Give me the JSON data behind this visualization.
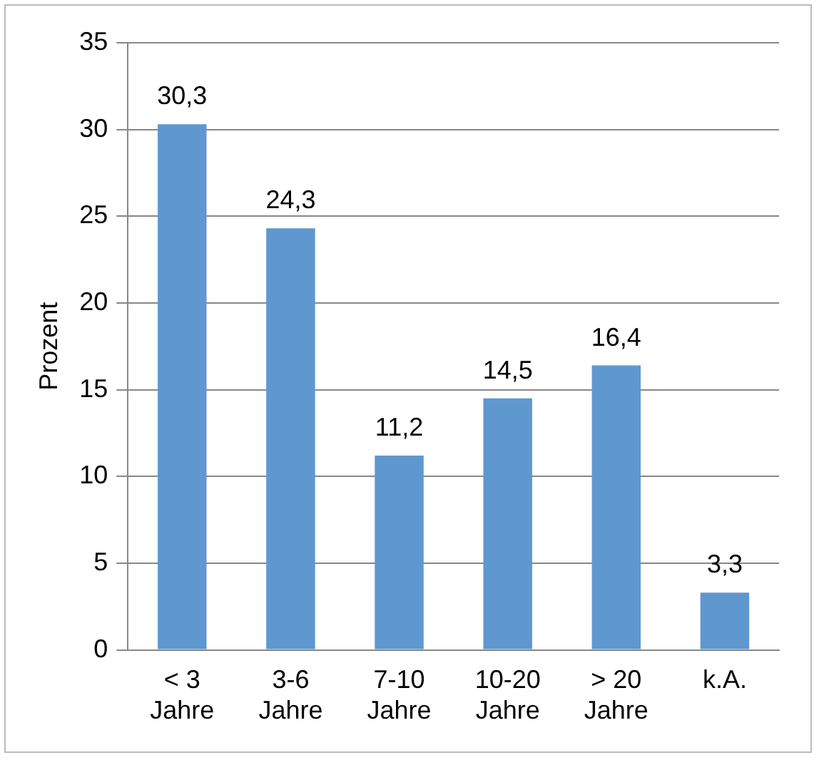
{
  "chart_data": {
    "type": "bar",
    "ylabel": "Prozent",
    "categories": [
      "< 3 Jahre",
      "3-6 Jahre",
      "7-10 Jahre",
      "10-20 Jahre",
      "> 20 Jahre",
      "k.A."
    ],
    "values": [
      30.3,
      24.3,
      11.2,
      14.5,
      16.4,
      3.3
    ],
    "value_labels": [
      "30,3",
      "24,3",
      "11,2",
      "14,5",
      "16,4",
      "3,3"
    ],
    "color": "#5f97cf",
    "ylim": [
      0,
      35
    ],
    "yticks": [
      0,
      5,
      10,
      15,
      20,
      25,
      30,
      35
    ],
    "grid": "y",
    "legend": false
  }
}
